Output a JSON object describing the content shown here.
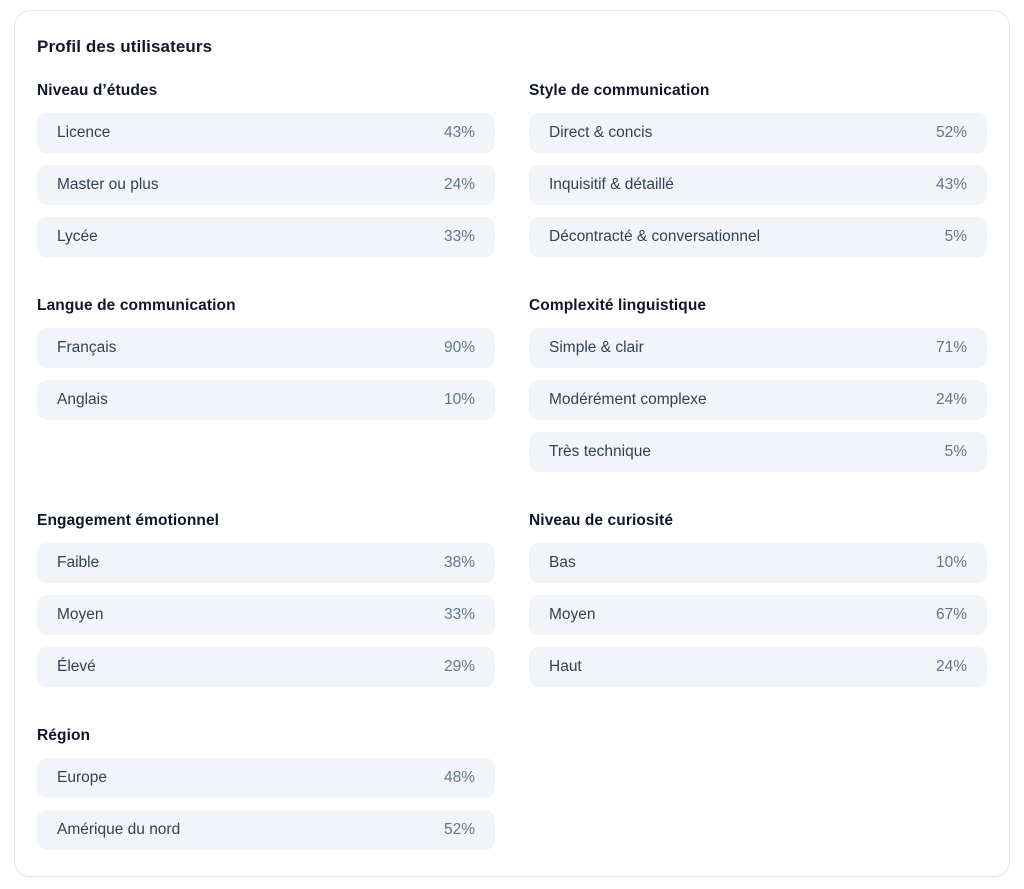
{
  "panel": {
    "title": "Profil des utilisateurs",
    "sections": [
      {
        "title": "Niveau d’études",
        "items": [
          {
            "label": "Licence",
            "value": "43%"
          },
          {
            "label": "Master ou plus",
            "value": "24%"
          },
          {
            "label": "Lycée",
            "value": "33%"
          }
        ]
      },
      {
        "title": "Style de communication",
        "items": [
          {
            "label": "Direct & concis",
            "value": "52%"
          },
          {
            "label": "Inquisitif & détaillé",
            "value": "43%"
          },
          {
            "label": "Décontracté & conversationnel",
            "value": "5%"
          }
        ]
      },
      {
        "title": "Langue de communication",
        "items": [
          {
            "label": "Français",
            "value": "90%"
          },
          {
            "label": "Anglais",
            "value": "10%"
          }
        ]
      },
      {
        "title": "Complexité linguistique",
        "items": [
          {
            "label": "Simple & clair",
            "value": "71%"
          },
          {
            "label": "Modérément complexe",
            "value": "24%"
          },
          {
            "label": "Très technique",
            "value": "5%"
          }
        ]
      },
      {
        "title": "Engagement émotionnel",
        "items": [
          {
            "label": "Faible",
            "value": "38%"
          },
          {
            "label": "Moyen",
            "value": "33%"
          },
          {
            "label": "Élevé",
            "value": "29%"
          }
        ]
      },
      {
        "title": "Niveau de curiosité",
        "items": [
          {
            "label": "Bas",
            "value": "10%"
          },
          {
            "label": "Moyen",
            "value": "67%"
          },
          {
            "label": "Haut",
            "value": "24%"
          }
        ]
      },
      {
        "title": "Région",
        "items": [
          {
            "label": "Europe",
            "value": "48%"
          },
          {
            "label": "Amérique du nord",
            "value": "52%"
          }
        ]
      }
    ],
    "colors": {
      "card_background": "#ffffff",
      "card_border": "#e2e8f0",
      "row_background": "#f1f5f9",
      "heading_text": "#0f172a",
      "label_text": "#334155",
      "value_text": "#64748b"
    }
  }
}
